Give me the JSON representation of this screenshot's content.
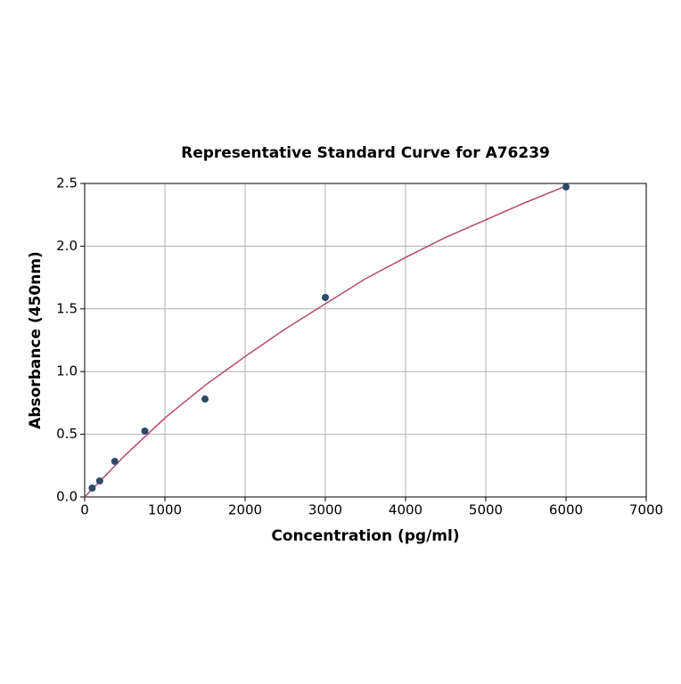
{
  "chart_data": {
    "type": "scatter",
    "title": "Representative Standard Curve for A76239",
    "x_label": "Concentration (pg/ml)",
    "y_label": "Absorbance (450nm)",
    "xlim": [
      0,
      7000
    ],
    "xticks": [
      0,
      1000,
      2000,
      3000,
      4000,
      5000,
      6000,
      7000
    ],
    "ylim": [
      0,
      2.5
    ],
    "yticks": [
      {
        "value": 0,
        "label": "0.0"
      },
      0.5,
      {
        "value": 1,
        "label": "1.0"
      },
      1.5,
      {
        "value": 2,
        "label": "2.0"
      },
      2.5
    ],
    "grid": true,
    "series": [
      {
        "style": "line",
        "color": "#b5496e",
        "x": [
          0,
          500,
          1000,
          1500,
          2000,
          2500,
          3000,
          3500,
          4000,
          4500,
          5000,
          5500,
          6000
        ],
        "values": [
          0,
          0.33,
          0.63,
          0.89,
          1.12,
          1.34,
          1.54,
          1.74,
          1.91,
          2.07,
          2.21,
          2.35,
          2.48
        ]
      },
      {
        "style": "markers",
        "color": "#2e4a68",
        "x": [
          93.75,
          187.5,
          375,
          750,
          1500,
          3000,
          6000
        ],
        "values": [
          0.071,
          0.128,
          0.284,
          0.526,
          0.781,
          1.591,
          2.472
        ]
      }
    ]
  }
}
